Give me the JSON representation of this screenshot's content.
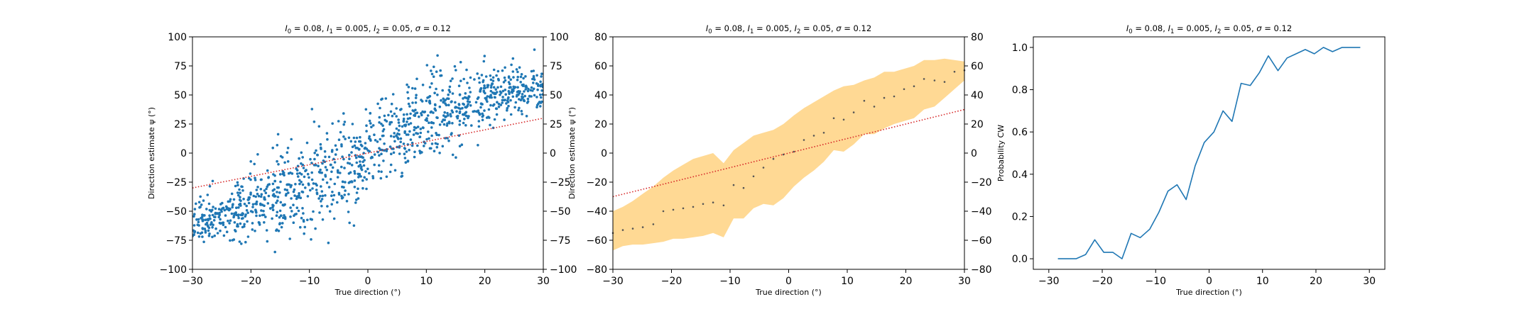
{
  "colors": {
    "scatter": "#1f77b4",
    "reference": "#d62728",
    "band": "#ffa500",
    "mean_marker": "#555555",
    "line": "#1f77b4"
  },
  "chart_data": [
    {
      "type": "scatter",
      "title": "I_0 = 0.08, I_1 = 0.005, I_2 = 0.05, σ = 0.12",
      "title_parts": {
        "a": "I",
        "a_sub": "0",
        "a_val": " = 0.08, ",
        "b": "I",
        "b_sub": "1",
        "b_val": " = 0.005, ",
        "c": "I",
        "c_sub": "2",
        "c_val": " = 0.05, ",
        "d": "σ",
        "d_val": " = 0.12"
      },
      "xlabel": "True direction (°)",
      "ylabel": "Direction estimate ψ (°)",
      "xlim": [
        -30,
        30
      ],
      "ylim": [
        -100,
        100
      ],
      "xticks": [
        -30,
        -20,
        -10,
        0,
        10,
        20,
        30
      ],
      "yticks": [
        -100,
        -75,
        -50,
        -25,
        0,
        25,
        50,
        75,
        100
      ],
      "right_yticks": [
        -100,
        -75,
        -50,
        -25,
        0,
        25,
        50,
        75,
        100
      ],
      "reference_line": {
        "x": [
          -30,
          30
        ],
        "y": [
          -30,
          30
        ],
        "style": "dotted"
      },
      "points": {
        "count": 1200,
        "seed": 7,
        "trend": [
          [
            -30,
            -60
          ],
          [
            -25,
            -55
          ],
          [
            -20,
            -45
          ],
          [
            -15,
            -36
          ],
          [
            -10,
            -25
          ],
          [
            -5,
            -13
          ],
          [
            0,
            0
          ],
          [
            5,
            15
          ],
          [
            10,
            31
          ],
          [
            15,
            41
          ],
          [
            20,
            48
          ],
          [
            25,
            54
          ],
          [
            30,
            57
          ]
        ],
        "spread": [
          [
            -30,
            8
          ],
          [
            -20,
            15
          ],
          [
            -10,
            20
          ],
          [
            0,
            20
          ],
          [
            10,
            18
          ],
          [
            20,
            13
          ],
          [
            30,
            8
          ]
        ]
      }
    },
    {
      "type": "area",
      "title": "I_0 = 0.08, I_1 = 0.005, I_2 = 0.05, σ = 0.12",
      "title_parts": {
        "a": "I",
        "a_sub": "0",
        "a_val": " = 0.08, ",
        "b": "I",
        "b_sub": "1",
        "b_val": " = 0.005, ",
        "c": "I",
        "c_sub": "2",
        "c_val": " = 0.05, ",
        "d": "σ",
        "d_val": " = 0.12"
      },
      "xlabel": "True direction (°)",
      "ylabel": "Direction estimate ψ (°)",
      "xlim": [
        -30,
        30
      ],
      "ylim": [
        -80,
        80
      ],
      "xticks": [
        -30,
        -20,
        -10,
        0,
        10,
        20,
        30
      ],
      "yticks": [
        -80,
        -60,
        -40,
        -20,
        0,
        20,
        40,
        60,
        80
      ],
      "right_yticks": [
        -80,
        -60,
        -40,
        -20,
        0,
        20,
        40,
        60,
        80
      ],
      "reference_line": {
        "x": [
          -30,
          30
        ],
        "y": [
          -30,
          30
        ],
        "style": "dotted"
      },
      "x": [
        -30,
        -28.3,
        -26.6,
        -24.9,
        -23.1,
        -21.4,
        -19.7,
        -18,
        -16.3,
        -14.6,
        -12.9,
        -11.1,
        -9.4,
        -7.7,
        -6,
        -4.3,
        -2.6,
        -0.9,
        0.9,
        2.6,
        4.3,
        6,
        7.7,
        9.4,
        11.1,
        12.9,
        14.6,
        16.3,
        18,
        19.7,
        21.4,
        23.1,
        24.9,
        26.6,
        28.3,
        30
      ],
      "mean": [
        -55,
        -53,
        -52,
        -51,
        -49,
        -40,
        -39,
        -38,
        -37,
        -35,
        -34,
        -36,
        -22,
        -24,
        -16,
        -10,
        -4,
        -1,
        1,
        9,
        12,
        14,
        24,
        23,
        28,
        36,
        32,
        38,
        39,
        44,
        46,
        51,
        50,
        49,
        56,
        57
      ],
      "upper": [
        -40,
        -37,
        -33,
        -28,
        -23,
        -17,
        -12,
        -8,
        -4,
        -2,
        0,
        -7,
        2,
        7,
        12,
        14,
        16,
        20,
        26,
        31,
        35,
        39,
        43,
        46,
        47,
        50,
        52,
        56,
        56,
        58,
        60,
        64,
        64,
        65,
        64,
        63
      ],
      "lower": [
        -67,
        -64,
        -63,
        -63,
        -62,
        -61,
        -59,
        -59,
        -58,
        -57,
        -55,
        -58,
        -45,
        -45,
        -38,
        -35,
        -36,
        -31,
        -23,
        -17,
        -12,
        -6,
        2,
        1,
        6,
        13,
        13,
        17,
        20,
        22,
        24,
        30,
        32,
        38,
        44,
        50
      ]
    },
    {
      "type": "line",
      "title": "I_0 = 0.08, I_1 = 0.005, I_2 = 0.05, σ = 0.12",
      "title_parts": {
        "a": "I",
        "a_sub": "0",
        "a_val": " = 0.08, ",
        "b": "I",
        "b_sub": "1",
        "b_val": " = 0.005, ",
        "c": "I",
        "c_sub": "2",
        "c_val": " = 0.05, ",
        "d": "σ",
        "d_val": " = 0.12"
      },
      "xlabel": "True direction (°)",
      "ylabel": "Probability CW",
      "xlim": [
        -32.9,
        32.9
      ],
      "ylim": [
        -0.05,
        1.05
      ],
      "xticks": [
        -30,
        -20,
        -10,
        0,
        10,
        20,
        30
      ],
      "yticks": [
        0.0,
        0.2,
        0.4,
        0.6,
        0.8,
        1.0
      ],
      "ytick_labels": [
        "0.0",
        "0.2",
        "0.4",
        "0.6",
        "0.8",
        "1.0"
      ],
      "x": [
        -28.3,
        -26.6,
        -24.9,
        -23.1,
        -21.4,
        -19.7,
        -18,
        -16.3,
        -14.6,
        -12.9,
        -11.1,
        -9.4,
        -7.7,
        -6,
        -4.3,
        -2.6,
        -0.9,
        0.9,
        2.6,
        4.3,
        6,
        7.7,
        9.4,
        11.1,
        12.9,
        14.6,
        16.3,
        18,
        19.7,
        21.4,
        23.1,
        24.9,
        26.6,
        28.3
      ],
      "y": [
        0.0,
        0.0,
        0.0,
        0.02,
        0.09,
        0.03,
        0.03,
        0.0,
        0.12,
        0.1,
        0.14,
        0.22,
        0.32,
        0.35,
        0.28,
        0.44,
        0.55,
        0.6,
        0.7,
        0.65,
        0.83,
        0.82,
        0.88,
        0.96,
        0.89,
        0.95,
        0.97,
        0.99,
        0.97,
        1.0,
        0.98,
        1.0,
        1.0,
        1.0
      ]
    }
  ]
}
